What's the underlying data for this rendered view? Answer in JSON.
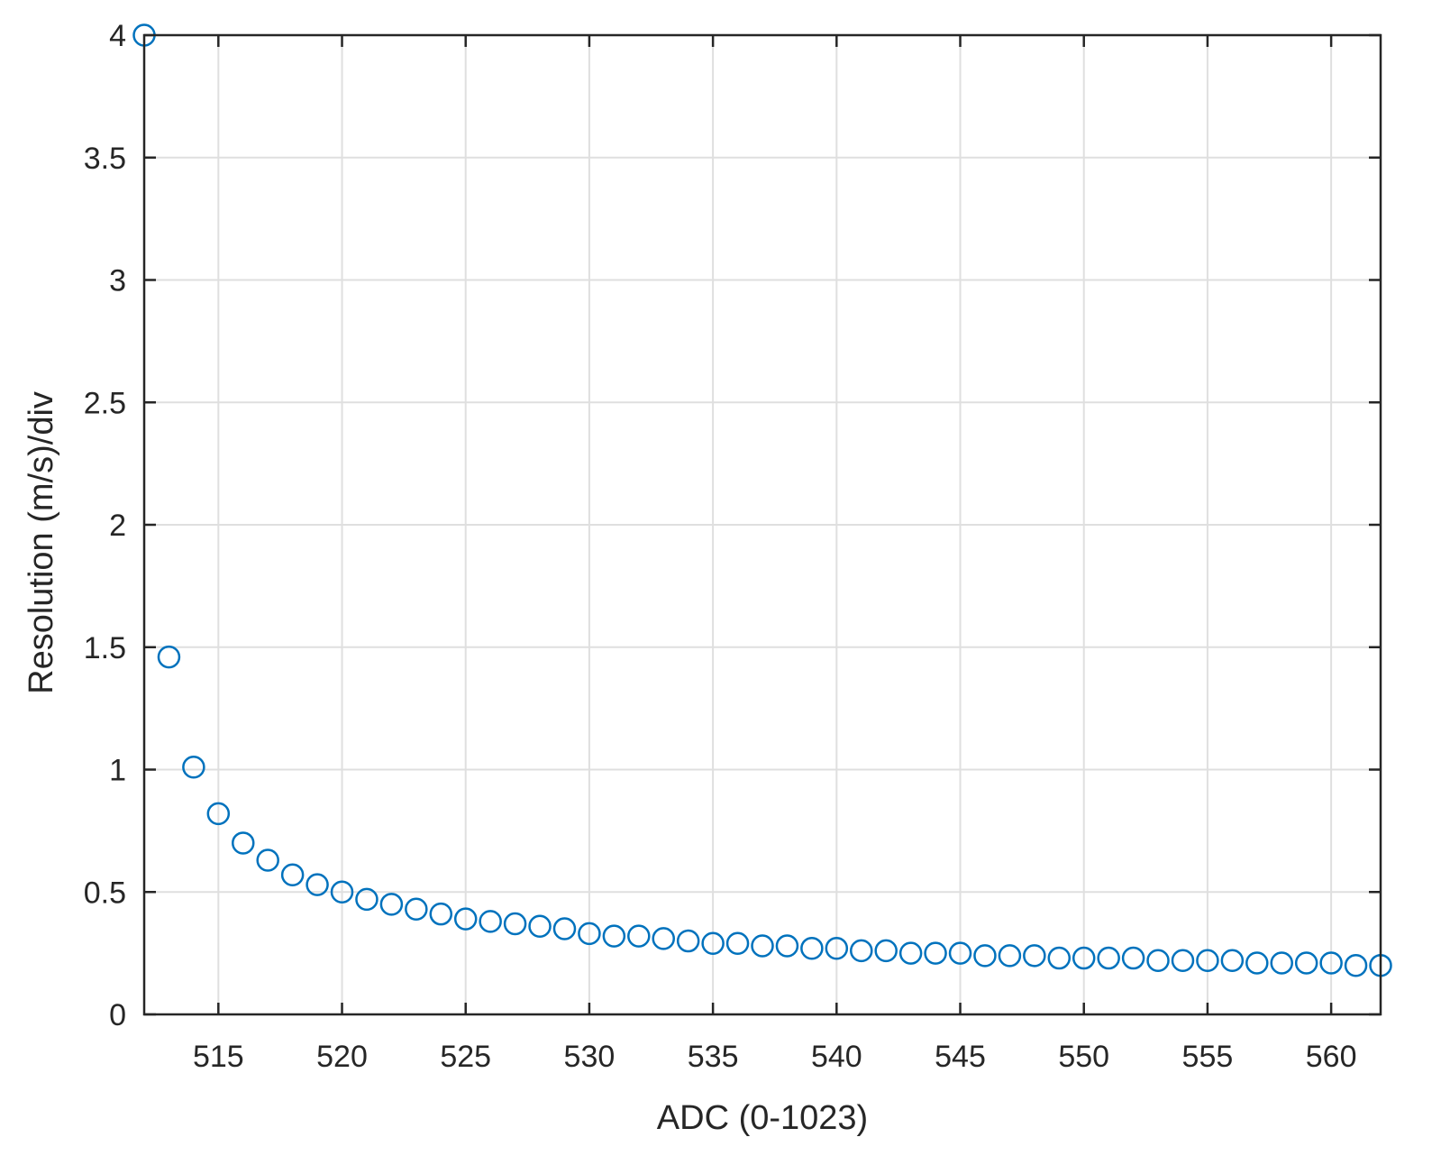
{
  "chart_data": {
    "type": "scatter",
    "xlabel": "ADC (0-1023)",
    "ylabel": "Resolution (m/s)/div",
    "xlim": [
      512,
      562
    ],
    "ylim": [
      0,
      4
    ],
    "xticks": [
      515,
      520,
      525,
      530,
      535,
      540,
      545,
      550,
      555,
      560
    ],
    "yticks": [
      0,
      0.5,
      1,
      1.5,
      2,
      2.5,
      3,
      3.5,
      4
    ],
    "x_tick_labels": [
      "515",
      "520",
      "525",
      "530",
      "535",
      "540",
      "545",
      "550",
      "555",
      "560"
    ],
    "y_tick_labels": [
      "0",
      "0.5",
      "1",
      "1.5",
      "2",
      "2.5",
      "3",
      "3.5",
      "4"
    ],
    "grid": true,
    "box": true,
    "marker": "circle-open",
    "color": "#0072BD",
    "series": [
      {
        "x": [
          512,
          513,
          514,
          515,
          516,
          517,
          518,
          519,
          520,
          521,
          522,
          523,
          524,
          525,
          526,
          527,
          528,
          529,
          530,
          531,
          532,
          533,
          534,
          535,
          536,
          537,
          538,
          539,
          540,
          541,
          542,
          543,
          544,
          545,
          546,
          547,
          548,
          549,
          550,
          551,
          552,
          553,
          554,
          555,
          556,
          557,
          558,
          559,
          560,
          561,
          562
        ],
        "y": [
          4.0,
          1.46,
          1.01,
          0.82,
          0.7,
          0.63,
          0.57,
          0.53,
          0.5,
          0.47,
          0.45,
          0.43,
          0.41,
          0.39,
          0.38,
          0.37,
          0.36,
          0.35,
          0.33,
          0.32,
          0.32,
          0.31,
          0.3,
          0.29,
          0.29,
          0.28,
          0.28,
          0.27,
          0.27,
          0.26,
          0.26,
          0.25,
          0.25,
          0.25,
          0.24,
          0.24,
          0.24,
          0.23,
          0.23,
          0.23,
          0.23,
          0.22,
          0.22,
          0.22,
          0.22,
          0.21,
          0.21,
          0.21,
          0.21,
          0.2,
          0.2
        ]
      }
    ]
  }
}
